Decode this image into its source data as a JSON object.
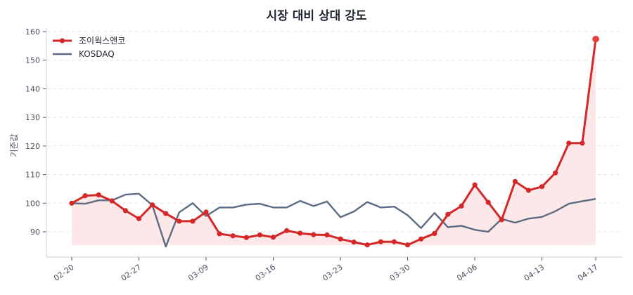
{
  "chart_data": {
    "type": "line",
    "title": "시장 대비 상대 강도",
    "xlabel": "",
    "ylabel": "기준값",
    "ylim": [
      82,
      162
    ],
    "yticks": [
      90,
      100,
      110,
      120,
      130,
      140,
      150,
      160
    ],
    "grid": true,
    "legend_position": "upper left",
    "x_tick_labels": [
      {
        "label": "02-20",
        "index": 0
      },
      {
        "label": "02-27",
        "index": 5
      },
      {
        "label": "03-09",
        "index": 10
      },
      {
        "label": "03-16",
        "index": 15
      },
      {
        "label": "03-23",
        "index": 20
      },
      {
        "label": "03-30",
        "index": 25
      },
      {
        "label": "04-06",
        "index": 30
      },
      {
        "label": "04-13",
        "index": 35
      },
      {
        "label": "04-17",
        "index": 39
      }
    ],
    "fill_baseline": 85.3,
    "series": [
      {
        "name": "조이웍스앤코",
        "color": "#d62728",
        "markers": true,
        "fill": "#fbe4e4",
        "values": [
          100,
          102.6,
          102.9,
          100.8,
          97.4,
          94.6,
          99.4,
          96.4,
          93.7,
          93.7,
          96.9,
          89.3,
          88.6,
          88.0,
          88.9,
          88.1,
          90.4,
          89.5,
          89.0,
          88.9,
          87.5,
          86.4,
          85.4,
          86.5,
          86.5,
          85.4,
          87.5,
          89.4,
          96.1,
          99.0,
          106.4,
          100.3,
          94.2,
          107.6,
          104.5,
          105.8,
          110.6,
          121.0,
          121.0,
          157.4
        ]
      },
      {
        "name": "KOSDAQ",
        "color": "#5b6b82",
        "markers": false,
        "values": [
          100,
          99.8,
          101.0,
          101.0,
          103.0,
          103.3,
          99.3,
          84.8,
          96.8,
          100.0,
          95.5,
          98.5,
          98.5,
          99.5,
          99.8,
          98.5,
          98.5,
          100.8,
          99.0,
          100.6,
          95.1,
          97.1,
          100.4,
          98.5,
          98.8,
          95.8,
          91.3,
          96.6,
          91.6,
          92.1,
          90.7,
          90.0,
          94.5,
          93.2,
          94.6,
          95.2,
          97.2,
          99.8,
          100.7,
          101.5
        ]
      }
    ]
  }
}
